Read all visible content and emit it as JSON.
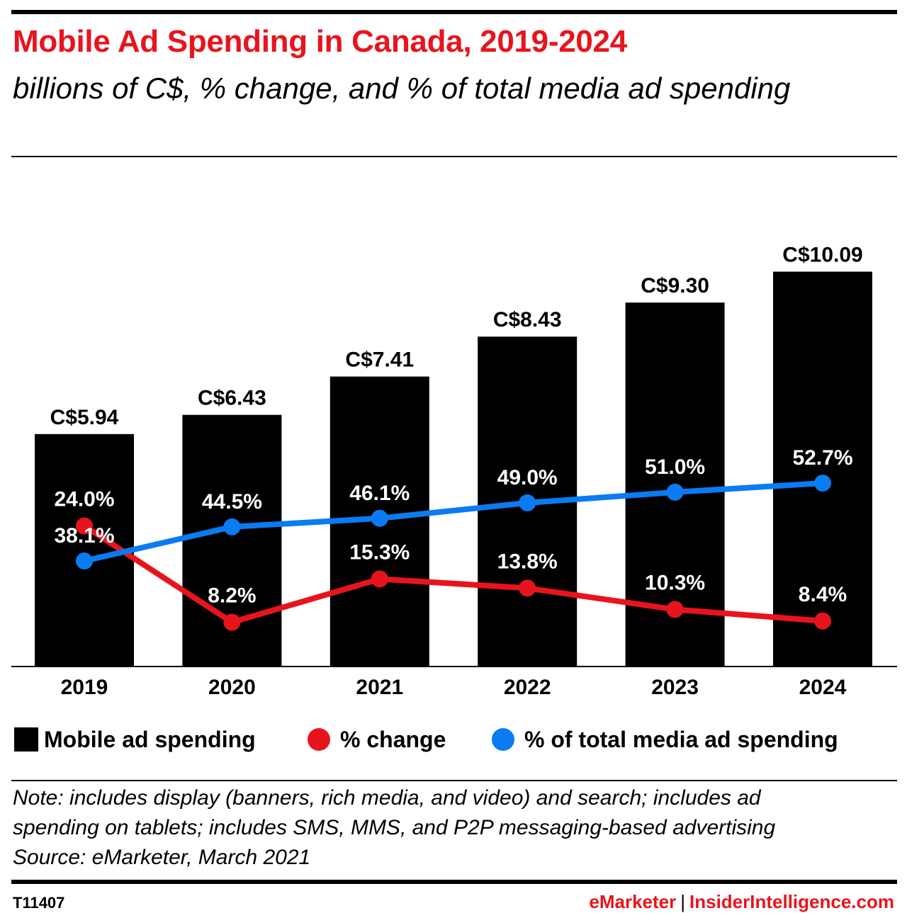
{
  "header": {
    "title": "Mobile Ad Spending in Canada, 2019-2024",
    "subtitle": "billions of C$, % change, and % of total media ad spending"
  },
  "colors": {
    "accent": "#e8141d",
    "bar": "#000000",
    "pct_change": "#e8141d",
    "pct_total": "#0a7bf2"
  },
  "chart_data": {
    "type": "bar",
    "categories": [
      "2019",
      "2020",
      "2021",
      "2022",
      "2023",
      "2024"
    ],
    "series": [
      {
        "name": "Mobile ad spending",
        "type": "bar",
        "values": [
          5.94,
          6.43,
          7.41,
          8.43,
          9.3,
          10.09
        ],
        "labels": [
          "C$5.94",
          "C$6.43",
          "C$7.41",
          "C$8.43",
          "C$9.30",
          "C$10.09"
        ]
      },
      {
        "name": "% change",
        "type": "line",
        "values": [
          24.0,
          8.2,
          15.3,
          13.8,
          10.3,
          8.4
        ],
        "labels": [
          "24.0%",
          "8.2%",
          "15.3%",
          "13.8%",
          "10.3%",
          "8.4%"
        ]
      },
      {
        "name": "% of total media ad spending",
        "type": "line",
        "values": [
          38.1,
          44.5,
          46.1,
          49.0,
          51.0,
          52.7
        ],
        "labels": [
          "38.1%",
          "44.5%",
          "46.1%",
          "49.0%",
          "51.0%",
          "52.7%"
        ]
      }
    ],
    "grid": false,
    "legend_placement": "bottom"
  },
  "legend": {
    "bar": "Mobile ad spending",
    "pct_change": "% change",
    "pct_total": "% of total media ad spending"
  },
  "footer": {
    "note_line1": "Note: includes display (banners, rich media, and video) and search; includes ad",
    "note_line2": "spending on tablets; includes SMS, MMS, and P2P messaging-based advertising",
    "source": "Source: eMarketer, March 2021",
    "chart_id": "T11407",
    "brand_left": "eMarketer",
    "brand_sep": "|",
    "brand_right": "InsiderIntelligence.com"
  }
}
